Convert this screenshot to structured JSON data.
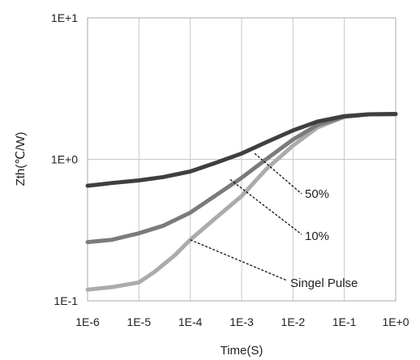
{
  "chart_data": {
    "type": "line",
    "xlabel": "Time(S)",
    "ylabel": "Zth(℃/W)",
    "x_scale": "log",
    "y_scale": "log",
    "xlim": [
      1e-06,
      1
    ],
    "ylim": [
      0.1,
      10
    ],
    "x_ticks": [
      "1E-6",
      "1E-5",
      "1E-4",
      "1E-3",
      "1E-2",
      "1E-1",
      "1E+0"
    ],
    "y_ticks": [
      "1E-1",
      "1E+0",
      "1E+1"
    ],
    "grid": true,
    "legend": "none",
    "series": [
      {
        "name": "50%",
        "color": "#3f3f3f",
        "x": [
          1e-06,
          3e-06,
          1e-05,
          3e-05,
          0.0001,
          0.0003,
          0.001,
          0.003,
          0.01,
          0.03,
          0.1,
          0.3,
          1
        ],
        "y": [
          0.65,
          0.68,
          0.71,
          0.75,
          0.82,
          0.94,
          1.1,
          1.32,
          1.6,
          1.85,
          2.02,
          2.08,
          2.09
        ]
      },
      {
        "name": "10%",
        "color": "#7b7b7b",
        "x": [
          1e-06,
          3e-06,
          1e-05,
          3e-05,
          0.0001,
          0.0003,
          0.001,
          0.003,
          0.01,
          0.03,
          0.1,
          0.3,
          1
        ],
        "y": [
          0.26,
          0.27,
          0.3,
          0.34,
          0.42,
          0.55,
          0.74,
          1.0,
          1.38,
          1.75,
          2.0,
          2.08,
          2.09
        ]
      },
      {
        "name": "Singel Pulse",
        "color": "#ababab",
        "x": [
          1e-06,
          3e-06,
          1e-05,
          2e-05,
          5e-05,
          0.0001,
          0.0003,
          0.001,
          0.003,
          0.01,
          0.03,
          0.1,
          0.3,
          1
        ],
        "y": [
          0.12,
          0.125,
          0.135,
          0.16,
          0.21,
          0.27,
          0.38,
          0.55,
          0.85,
          1.25,
          1.68,
          2.0,
          2.08,
          2.09
        ]
      }
    ],
    "annotations": [
      {
        "text": "50%",
        "color": "#222222",
        "point_x": 0.0018,
        "point_y": 1.1
      },
      {
        "text": "10%",
        "color": "#222222",
        "point_x": 0.0006,
        "point_y": 0.72
      },
      {
        "text": "Singel Pulse",
        "color": "#222222",
        "point_x": 0.0001,
        "point_y": 0.27
      }
    ]
  }
}
